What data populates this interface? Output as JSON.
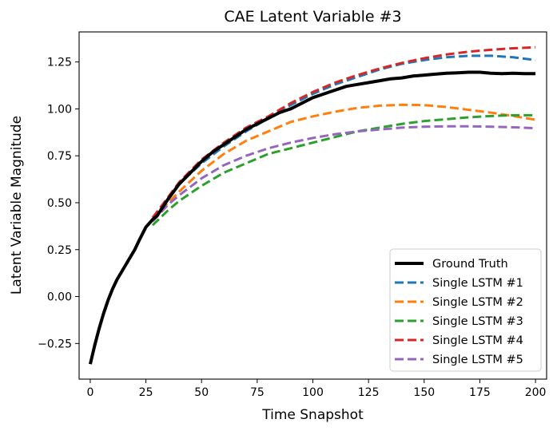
{
  "chart_data": {
    "type": "line",
    "title": "CAE Latent Variable #3",
    "xlabel": "Time Snapshot",
    "ylabel": "Latent Variable Magnitude",
    "xlim": [
      -5,
      205
    ],
    "ylim": [
      -0.44,
      1.41
    ],
    "xticks": [
      0,
      25,
      50,
      75,
      100,
      125,
      150,
      175,
      200
    ],
    "yticks": [
      -0.25,
      0.0,
      0.25,
      0.5,
      0.75,
      1.0,
      1.25
    ],
    "xtick_labels": [
      "0",
      "25",
      "50",
      "75",
      "100",
      "125",
      "150",
      "175",
      "200"
    ],
    "ytick_labels": [
      "−0.25",
      "0.00",
      "0.25",
      "0.50",
      "0.75",
      "1.00",
      "1.25"
    ],
    "legend_position": "lower-right",
    "series": [
      {
        "name": "Ground Truth",
        "color": "#000000",
        "style": "solid",
        "x": [
          0,
          2,
          4,
          6,
          8,
          10,
          12,
          15,
          18,
          20,
          22,
          25,
          28,
          30,
          35,
          40,
          45,
          50,
          55,
          60,
          65,
          70,
          75,
          80,
          85,
          90,
          95,
          100,
          105,
          110,
          115,
          120,
          125,
          130,
          135,
          140,
          145,
          150,
          155,
          160,
          165,
          170,
          175,
          180,
          185,
          190,
          195,
          200
        ],
        "y": [
          -0.36,
          -0.26,
          -0.17,
          -0.09,
          -0.02,
          0.04,
          0.09,
          0.15,
          0.21,
          0.25,
          0.3,
          0.37,
          0.41,
          0.43,
          0.52,
          0.6,
          0.66,
          0.72,
          0.77,
          0.81,
          0.85,
          0.89,
          0.92,
          0.95,
          0.98,
          1.0,
          1.03,
          1.06,
          1.08,
          1.1,
          1.12,
          1.13,
          1.14,
          1.15,
          1.16,
          1.165,
          1.175,
          1.18,
          1.185,
          1.19,
          1.192,
          1.195,
          1.195,
          1.19,
          1.188,
          1.19,
          1.188,
          1.188
        ]
      },
      {
        "name": "Single LSTM #1",
        "color": "#1f77b4",
        "style": "dashed",
        "x": [
          28,
          35,
          40,
          50,
          60,
          70,
          80,
          90,
          100,
          110,
          120,
          130,
          140,
          150,
          160,
          170,
          180,
          190,
          200
        ],
        "y": [
          0.41,
          0.52,
          0.6,
          0.71,
          0.8,
          0.88,
          0.95,
          1.02,
          1.08,
          1.13,
          1.17,
          1.21,
          1.24,
          1.26,
          1.275,
          1.283,
          1.283,
          1.275,
          1.26
        ]
      },
      {
        "name": "Single LSTM #2",
        "color": "#ff7f0e",
        "style": "dashed",
        "x": [
          28,
          35,
          40,
          50,
          60,
          70,
          80,
          90,
          100,
          110,
          120,
          130,
          140,
          150,
          160,
          170,
          180,
          190,
          200
        ],
        "y": [
          0.41,
          0.5,
          0.56,
          0.67,
          0.76,
          0.83,
          0.88,
          0.93,
          0.96,
          0.985,
          1.005,
          1.017,
          1.022,
          1.02,
          1.01,
          0.995,
          0.98,
          0.962,
          0.942
        ]
      },
      {
        "name": "Single LSTM #3",
        "color": "#2ca02c",
        "style": "dashed",
        "x": [
          28,
          35,
          40,
          50,
          60,
          70,
          80,
          90,
          100,
          110,
          120,
          130,
          140,
          150,
          160,
          170,
          180,
          190,
          200
        ],
        "y": [
          0.38,
          0.46,
          0.51,
          0.59,
          0.66,
          0.71,
          0.76,
          0.79,
          0.82,
          0.85,
          0.88,
          0.9,
          0.92,
          0.935,
          0.945,
          0.955,
          0.962,
          0.966,
          0.966
        ]
      },
      {
        "name": "Single LSTM #4",
        "color": "#d62728",
        "style": "dashed",
        "x": [
          28,
          35,
          40,
          50,
          60,
          70,
          80,
          90,
          100,
          110,
          120,
          130,
          140,
          150,
          160,
          170,
          180,
          190,
          200
        ],
        "y": [
          0.42,
          0.53,
          0.61,
          0.73,
          0.82,
          0.9,
          0.96,
          1.03,
          1.09,
          1.14,
          1.18,
          1.215,
          1.245,
          1.27,
          1.29,
          1.305,
          1.315,
          1.323,
          1.328
        ]
      },
      {
        "name": "Single LSTM #5",
        "color": "#9467bd",
        "style": "dashed",
        "x": [
          28,
          35,
          40,
          50,
          60,
          70,
          80,
          90,
          100,
          110,
          120,
          130,
          140,
          150,
          160,
          170,
          180,
          190,
          200
        ],
        "y": [
          0.4,
          0.49,
          0.54,
          0.63,
          0.7,
          0.75,
          0.79,
          0.82,
          0.845,
          0.865,
          0.88,
          0.89,
          0.9,
          0.905,
          0.907,
          0.907,
          0.905,
          0.902,
          0.897
        ]
      }
    ]
  }
}
